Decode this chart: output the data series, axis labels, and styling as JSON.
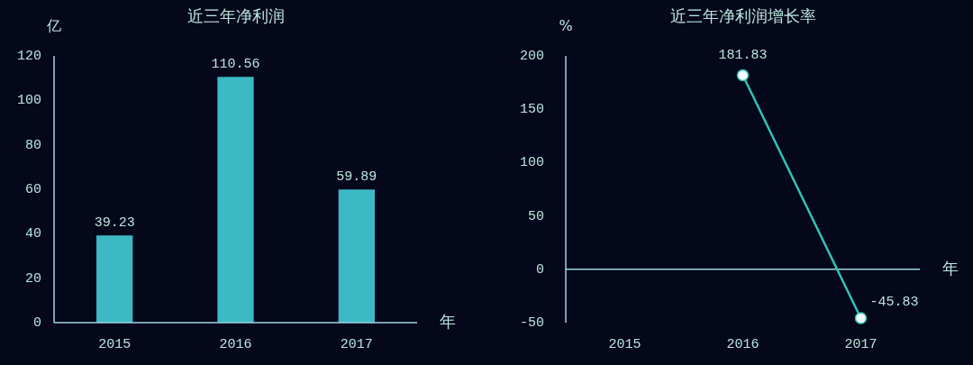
{
  "chart_data": [
    {
      "type": "bar",
      "title": "近三年净利润",
      "ylabel": "亿",
      "xlabel": "年",
      "categories": [
        "2015",
        "2016",
        "2017"
      ],
      "values": [
        39.23,
        110.56,
        59.89
      ],
      "color": "#3cb9c5",
      "ylim": [
        0,
        120
      ],
      "yticks": [
        0,
        20,
        40,
        60,
        80,
        100,
        120
      ],
      "data_labels": true
    },
    {
      "type": "line",
      "title": "近三年净利润增长率",
      "ylabel": "%",
      "xlabel": "年",
      "categories": [
        "2015",
        "2016",
        "2017"
      ],
      "values": [
        null,
        181.83,
        -45.83
      ],
      "color": "#2ec4b6",
      "marker": "circle",
      "ylim": [
        -50,
        200
      ],
      "yticks": [
        -50,
        0,
        50,
        100,
        150,
        200
      ],
      "data_labels": true,
      "ref_lines": [
        {
          "axis": "y",
          "value": 0,
          "color": "#9fd6e6"
        }
      ]
    }
  ]
}
